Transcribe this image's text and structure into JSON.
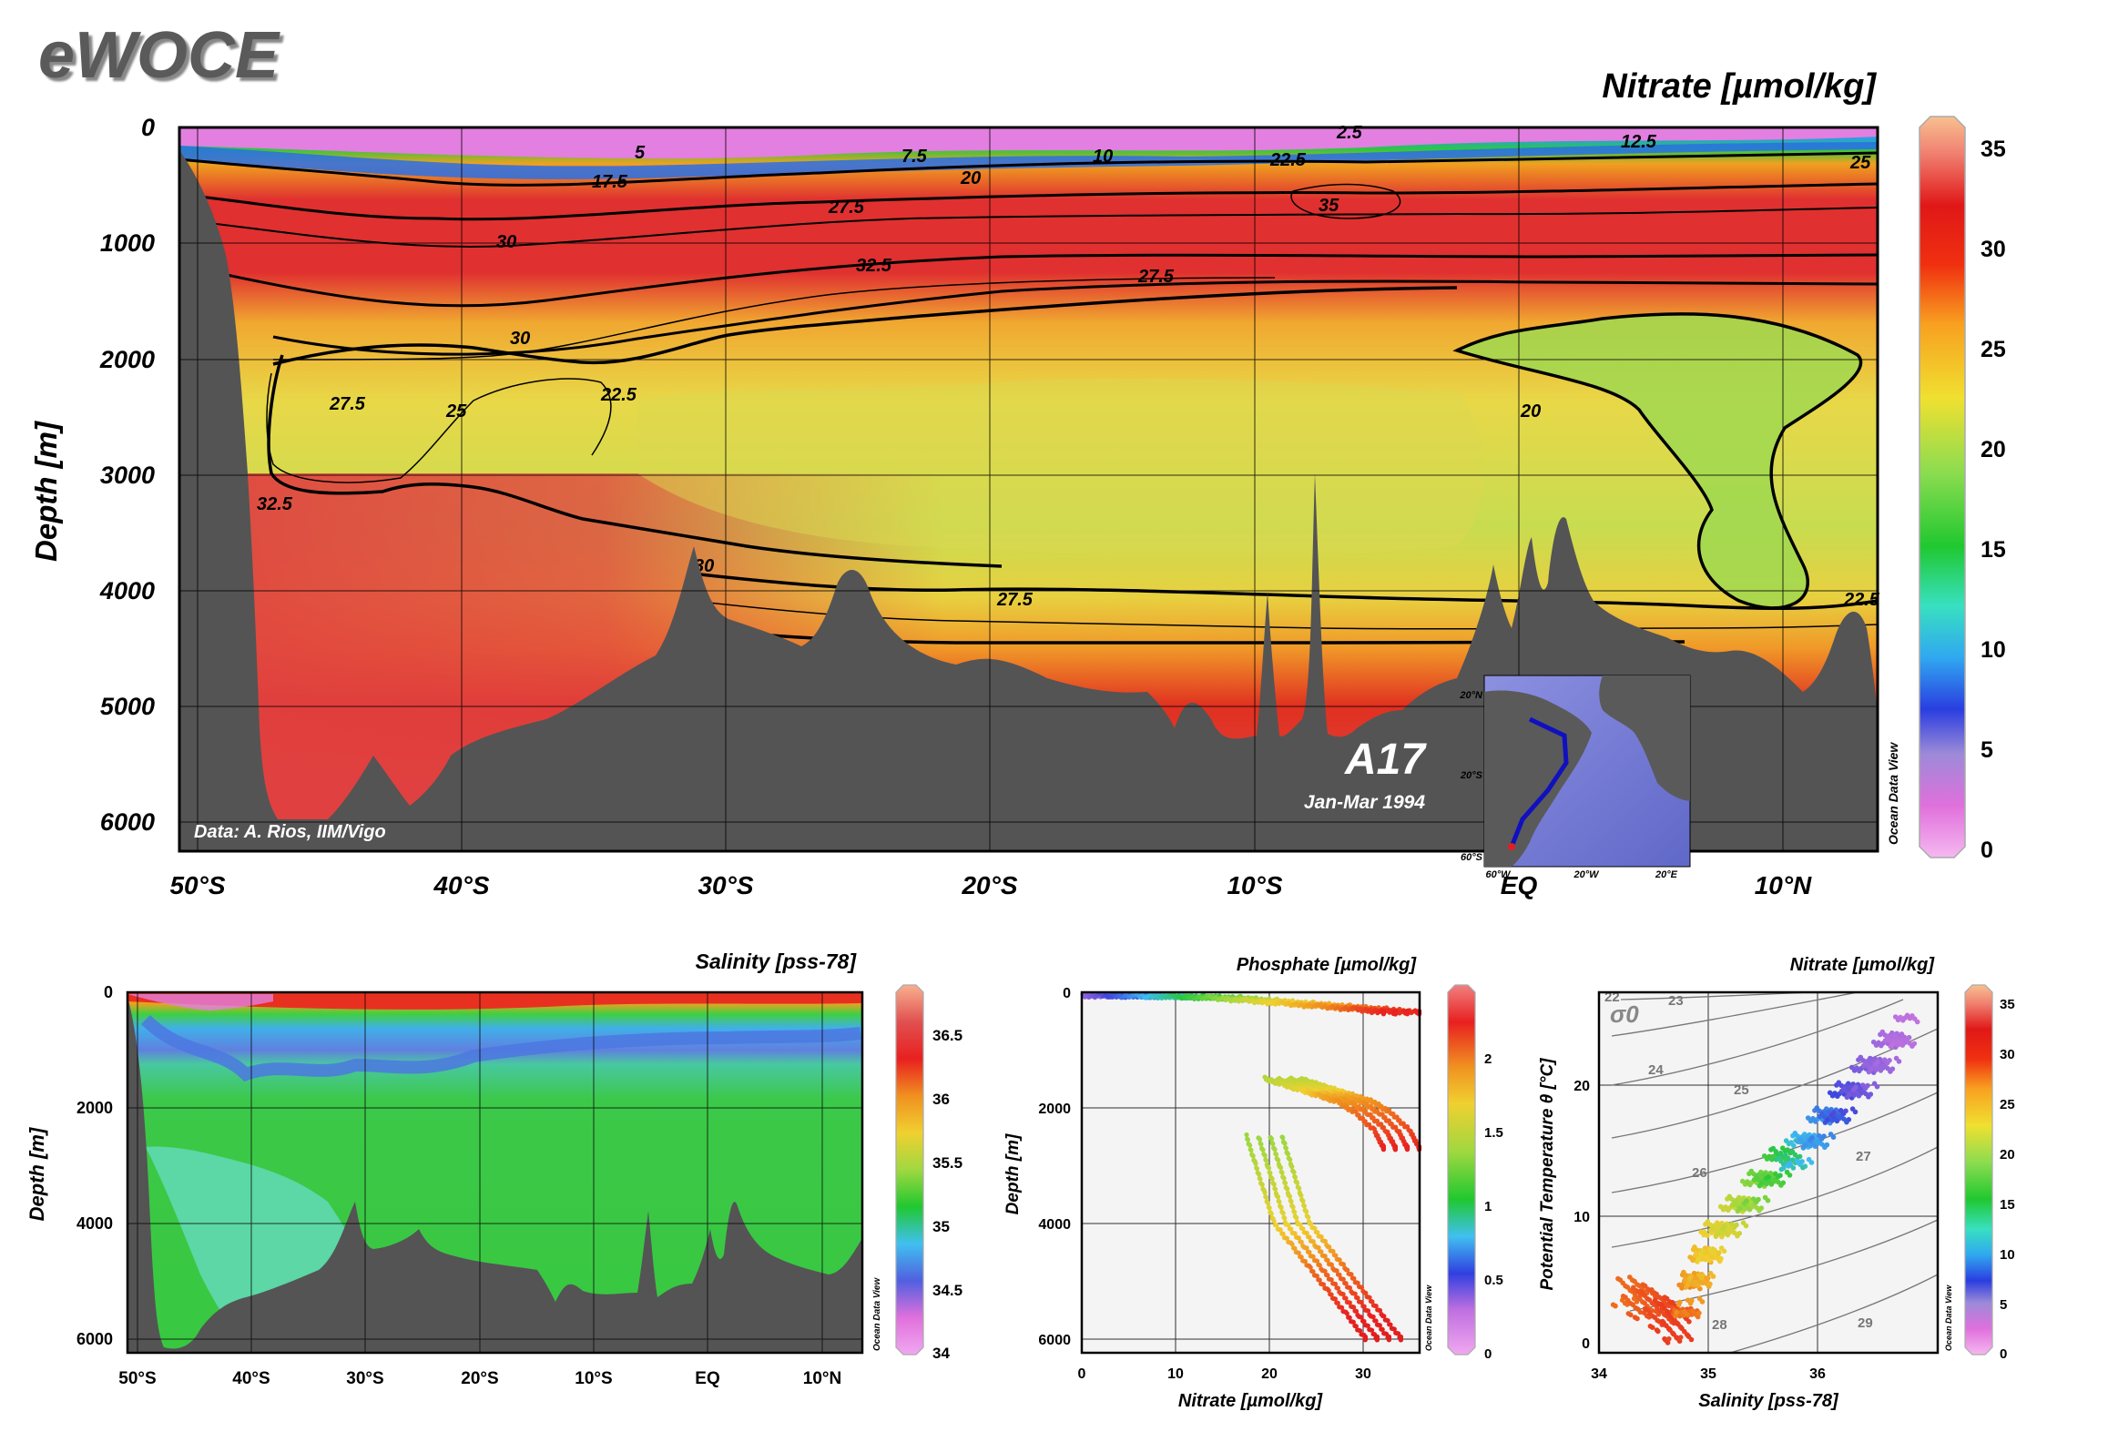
{
  "logo": "eWOCE",
  "main": {
    "title": "Nitrate [µmol/kg]",
    "ylabel": "Depth [m]",
    "credit": "Data: A. Rios, IIM/Vigo",
    "section": "A17",
    "period": "Jan-Mar 1994",
    "odv": "Ocean Data View"
  },
  "inset": {
    "lat_labels": [
      "20°N",
      "20°S",
      "60°S"
    ],
    "lon_labels": [
      "60°W",
      "20°W",
      "20°E"
    ]
  },
  "salinity": {
    "title": "Salinity [pss-78]",
    "ylabel": "Depth [m]",
    "odv": "Ocean Data View"
  },
  "phosphate": {
    "title": "Phosphate [µmol/kg]",
    "xlabel": "Nitrate [µmol/kg]",
    "ylabel": "Depth [m]",
    "odv": "Ocean Data View"
  },
  "ts": {
    "title": "Nitrate [µmol/kg]",
    "xlabel": "Salinity [pss-78]",
    "ylabel": "Potential Temperature θ [°C]",
    "sigma": "σ0",
    "odv": "Ocean Data View"
  },
  "chart_data": [
    {
      "type": "heatmap",
      "title": "Nitrate [µmol/kg]",
      "xlabel": "",
      "ylabel": "Depth [m]",
      "x_ticks": [
        "50°S",
        "40°S",
        "30°S",
        "20°S",
        "10°S",
        "EQ",
        "10°N"
      ],
      "x_range": [
        -52,
        13.5
      ],
      "y_ticks": [
        0,
        1000,
        2000,
        3000,
        4000,
        5000,
        6000
      ],
      "y_range": [
        0,
        6250
      ],
      "colorbar": {
        "ticks": [
          0,
          5,
          10,
          15,
          20,
          25,
          30,
          35
        ],
        "range": [
          0,
          36
        ]
      },
      "contour_labels": [
        "2.5",
        "5",
        "7.5",
        "10",
        "12.5",
        "17.5",
        "20",
        "22.5",
        "25",
        "27.5",
        "30",
        "32.5",
        "35"
      ],
      "colors": {
        "low": "#e27fe0",
        "mid": "#8cdc50",
        "high": "#e01818",
        "bathymetry": "#545454"
      }
    },
    {
      "type": "heatmap",
      "title": "Salinity [pss-78]",
      "ylabel": "Depth [m]",
      "x_ticks": [
        "50°S",
        "40°S",
        "30°S",
        "20°S",
        "10°S",
        "EQ",
        "10°N"
      ],
      "y_ticks": [
        0,
        2000,
        4000,
        6000
      ],
      "y_range": [
        0,
        6250
      ],
      "colorbar": {
        "ticks": [
          34,
          34.5,
          35,
          35.5,
          36,
          36.5
        ],
        "range": [
          34,
          36.8
        ]
      }
    },
    {
      "type": "scatter",
      "title": "Phosphate [µmol/kg]",
      "xlabel": "Nitrate [µmol/kg]",
      "ylabel": "Depth [m]",
      "x_ticks": [
        0,
        10,
        20,
        30
      ],
      "x_range": [
        0,
        37
      ],
      "y_ticks": [
        0,
        2000,
        4000,
        6000
      ],
      "y_range": [
        0,
        6250
      ],
      "colorbar": {
        "ticks": [
          0,
          0.5,
          1,
          1.5,
          2
        ],
        "range": [
          0,
          2.4
        ]
      },
      "series": [
        {
          "x": [
            1,
            4,
            8,
            12,
            16,
            20,
            24,
            28,
            32,
            35
          ],
          "y": [
            60,
            60,
            70,
            80,
            100,
            150,
            200,
            250,
            300,
            350
          ],
          "c": [
            0.1,
            0.3,
            0.6,
            0.9,
            1.2,
            1.5,
            1.7,
            1.9,
            2.1,
            2.2
          ]
        },
        {
          "x": [
            22,
            24,
            26,
            28,
            30,
            32,
            34,
            35
          ],
          "y": [
            1500,
            1600,
            1700,
            1800,
            1900,
            2100,
            2400,
            2700
          ],
          "c": [
            1.4,
            1.5,
            1.6,
            1.8,
            1.9,
            2.0,
            2.1,
            2.2
          ]
        },
        {
          "x": [
            20,
            21,
            22,
            23,
            25,
            27,
            29,
            31,
            33
          ],
          "y": [
            2500,
            3000,
            3500,
            4000,
            4400,
            4800,
            5200,
            5600,
            6000
          ],
          "c": [
            1.3,
            1.4,
            1.5,
            1.6,
            1.8,
            2.0,
            2.1,
            2.2,
            2.3
          ]
        }
      ]
    },
    {
      "type": "scatter",
      "title": "Nitrate [µmol/kg]",
      "xlabel": "Salinity [pss-78]",
      "ylabel": "Potential Temperature θ [°C]",
      "x_ticks": [
        34,
        35,
        36
      ],
      "x_range": [
        33.95,
        37.05
      ],
      "y_ticks": [
        0,
        10,
        20
      ],
      "y_range": [
        -1,
        27.5
      ],
      "isopycnal_labels": [
        "22",
        "23",
        "24",
        "25",
        "26",
        "27",
        "28",
        "29"
      ],
      "colorbar": {
        "ticks": [
          0,
          5,
          10,
          15,
          20,
          25,
          30,
          35
        ],
        "range": [
          0,
          36
        ]
      },
      "series": [
        {
          "x": [
            34.2,
            34.4,
            34.6,
            34.7,
            34.8,
            34.9,
            35.0,
            35.2,
            35.4,
            35.6,
            35.8,
            36.0,
            36.2,
            36.4,
            36.6,
            36.8
          ],
          "y": [
            4,
            3,
            2,
            1,
            4,
            6,
            8,
            10,
            12,
            14,
            15,
            17,
            19,
            21,
            23,
            25
          ],
          "c": [
            30,
            31,
            32,
            32,
            28,
            26,
            24,
            22,
            18,
            15,
            10,
            8,
            5,
            3,
            2,
            1
          ]
        }
      ]
    }
  ]
}
